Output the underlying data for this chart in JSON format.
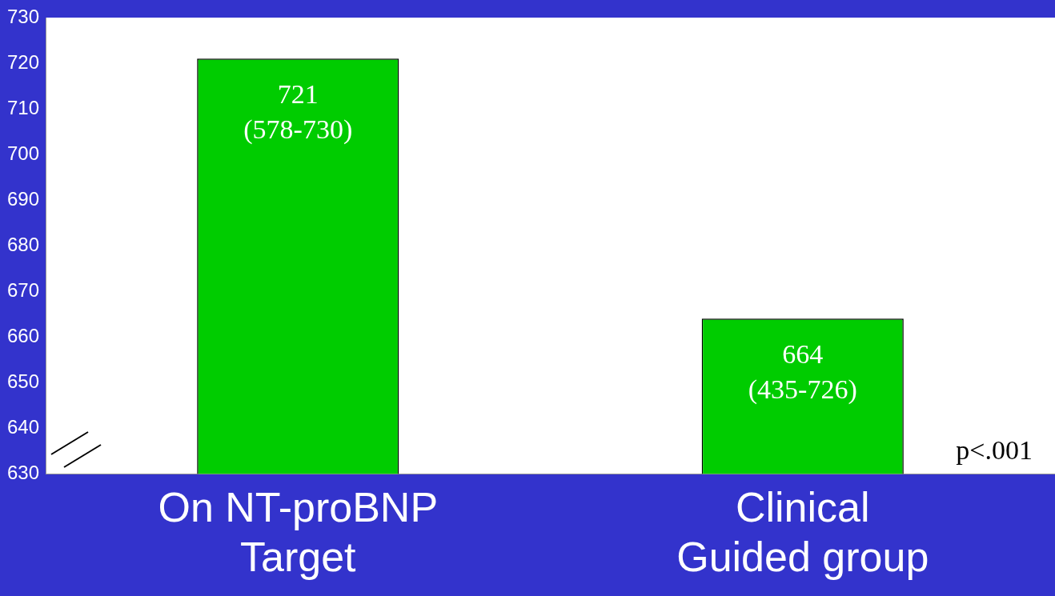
{
  "chart_data": {
    "type": "bar",
    "categories": [
      "On NT-proBNP\nTarget",
      "Clinical\nGuided group"
    ],
    "values": [
      721,
      664
    ],
    "color": "#00cc00",
    "value_labels": [
      "721\n(578-730)",
      "664\n(435-726)"
    ],
    "ylim": [
      630,
      730
    ],
    "yticks": [
      630,
      640,
      650,
      660,
      670,
      680,
      690,
      700,
      710,
      720,
      730
    ],
    "grid": false,
    "legend": false,
    "annotations": [
      "p<.001"
    ]
  }
}
